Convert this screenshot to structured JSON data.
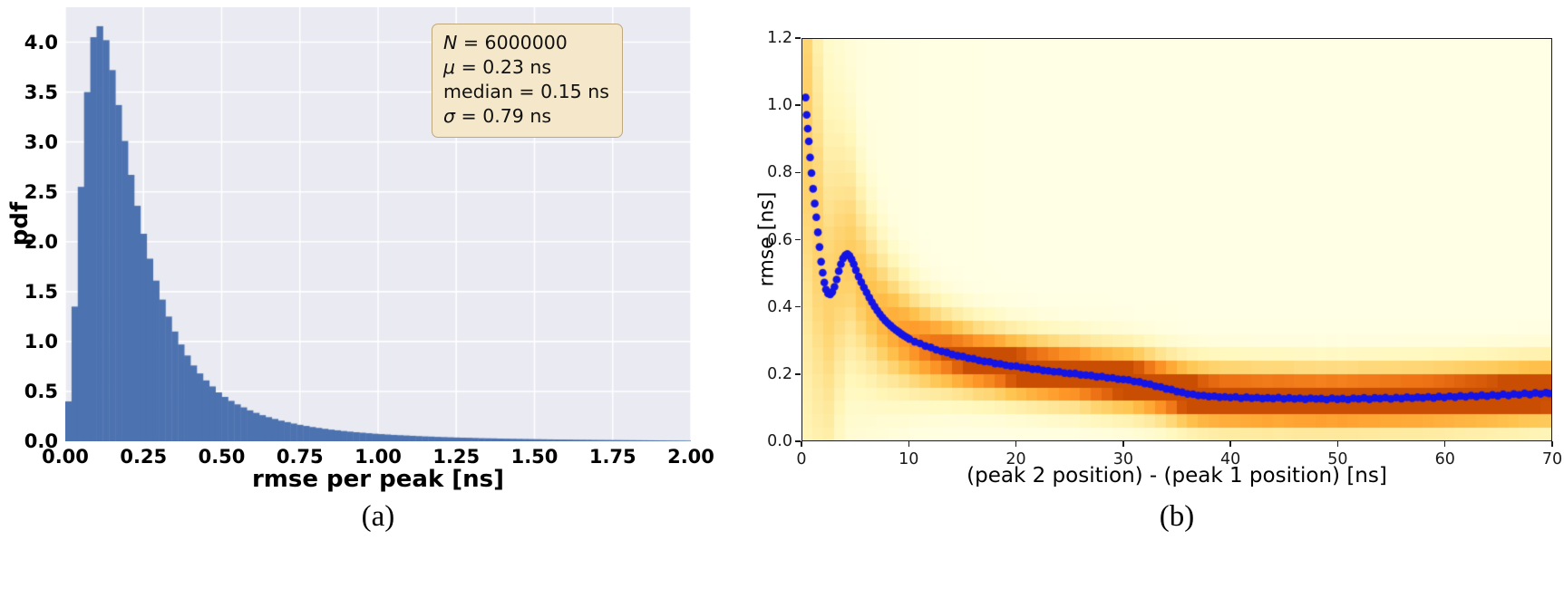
{
  "figure": {
    "caption_a": "(a)",
    "caption_b": "(b)"
  },
  "chart_data": [
    {
      "type": "bar",
      "title": "",
      "xlabel": "rmse per peak [ns]",
      "ylabel": "pdf",
      "xlim": [
        0,
        2
      ],
      "ylim": [
        0,
        4.35
      ],
      "grid": true,
      "bin_start": 0,
      "bin_width": 0.02,
      "bar_color": "#4c72b0",
      "axes_bg": "#e9eaf2",
      "grid_color": "#ffffff",
      "xtick_labels": [
        "0.00",
        "0.25",
        "0.50",
        "0.75",
        "1.00",
        "1.25",
        "1.50",
        "1.75",
        "2.00"
      ],
      "ytick_labels": [
        "0.0",
        "0.5",
        "1.0",
        "1.5",
        "2.0",
        "2.5",
        "3.0",
        "3.5",
        "4.0"
      ],
      "values": [
        0.4,
        1.35,
        2.55,
        3.5,
        4.05,
        4.16,
        4.02,
        3.72,
        3.37,
        3.01,
        2.67,
        2.36,
        2.08,
        1.83,
        1.61,
        1.42,
        1.25,
        1.1,
        0.97,
        0.86,
        0.76,
        0.68,
        0.61,
        0.55,
        0.49,
        0.445,
        0.405,
        0.37,
        0.34,
        0.31,
        0.285,
        0.262,
        0.242,
        0.224,
        0.207,
        0.192,
        0.178,
        0.165,
        0.154,
        0.143,
        0.134,
        0.125,
        0.117,
        0.11,
        0.103,
        0.097,
        0.091,
        0.086,
        0.081,
        0.076,
        0.072,
        0.068,
        0.064,
        0.061,
        0.058,
        0.055,
        0.052,
        0.049,
        0.047,
        0.044,
        0.042,
        0.04,
        0.038,
        0.036,
        0.035,
        0.033,
        0.031,
        0.03,
        0.029,
        0.027,
        0.026,
        0.025,
        0.024,
        0.023,
        0.022,
        0.021,
        0.02,
        0.019,
        0.018,
        0.0175,
        0.017,
        0.016,
        0.0155,
        0.015,
        0.014,
        0.0135,
        0.013,
        0.0125,
        0.012,
        0.0115,
        0.011,
        0.0105,
        0.01,
        0.0095,
        0.009,
        0.0085,
        0.008,
        0.0075,
        0.007,
        0.0065
      ],
      "annotation": {
        "lines": [
          {
            "name": "N",
            "italic": true,
            "value": "6000000"
          },
          {
            "name": "μ",
            "italic": true,
            "value": "0.23 ns"
          },
          {
            "name": "median",
            "italic": false,
            "value": "0.15 ns"
          },
          {
            "name": "σ",
            "italic": true,
            "value": "0.79 ns"
          }
        ]
      }
    },
    {
      "type": "scatter",
      "title": "",
      "xlabel": "(peak 2 position) - (peak 1 position) [ns]",
      "ylabel": "rmse [ns]",
      "xlim": [
        0,
        70
      ],
      "ylim": [
        0,
        1.2
      ],
      "grid": false,
      "marker_color": "#1414e6",
      "xtick_labels": [
        "0",
        "10",
        "20",
        "30",
        "40",
        "50",
        "60",
        "70"
      ],
      "ytick_labels": [
        "0.0",
        "0.2",
        "0.4",
        "0.6",
        "0.8",
        "1.0",
        "1.2"
      ],
      "points": [
        [
          0.3,
          1.025
        ],
        [
          0.4,
          0.973
        ],
        [
          0.5,
          0.932
        ],
        [
          0.6,
          0.894
        ],
        [
          0.72,
          0.846
        ],
        [
          0.85,
          0.799
        ],
        [
          1.0,
          0.752
        ],
        [
          1.15,
          0.708
        ],
        [
          1.3,
          0.667
        ],
        [
          1.45,
          0.622
        ],
        [
          1.6,
          0.578
        ],
        [
          1.75,
          0.534
        ],
        [
          1.9,
          0.501
        ],
        [
          2.05,
          0.472
        ],
        [
          2.2,
          0.451
        ],
        [
          2.4,
          0.439
        ],
        [
          2.6,
          0.436
        ],
        [
          2.8,
          0.444
        ],
        [
          3.0,
          0.459
        ],
        [
          3.2,
          0.481
        ],
        [
          3.4,
          0.506
        ],
        [
          3.6,
          0.527
        ],
        [
          3.8,
          0.544
        ],
        [
          4.0,
          0.553
        ],
        [
          4.2,
          0.557
        ],
        [
          4.4,
          0.552
        ],
        [
          4.6,
          0.541
        ],
        [
          4.8,
          0.527
        ],
        [
          5.0,
          0.509
        ],
        [
          5.25,
          0.49
        ],
        [
          5.5,
          0.473
        ],
        [
          5.75,
          0.457
        ],
        [
          6.0,
          0.442
        ],
        [
          6.25,
          0.427
        ],
        [
          6.5,
          0.413
        ],
        [
          6.75,
          0.4
        ],
        [
          7.0,
          0.388
        ],
        [
          7.25,
          0.377
        ],
        [
          7.5,
          0.367
        ],
        [
          7.75,
          0.358
        ],
        [
          8.0,
          0.35
        ],
        [
          8.25,
          0.343
        ],
        [
          8.5,
          0.336
        ],
        [
          8.75,
          0.33
        ],
        [
          9.0,
          0.324
        ],
        [
          9.25,
          0.318
        ],
        [
          9.5,
          0.313
        ],
        [
          9.75,
          0.308
        ],
        [
          10.0,
          0.303
        ],
        [
          10.5,
          0.295
        ],
        [
          11.0,
          0.29
        ],
        [
          11.5,
          0.282
        ],
        [
          12.0,
          0.278
        ],
        [
          12.5,
          0.271
        ],
        [
          13.0,
          0.266
        ],
        [
          13.5,
          0.263
        ],
        [
          14.0,
          0.257
        ],
        [
          14.5,
          0.253
        ],
        [
          15.0,
          0.251
        ],
        [
          15.5,
          0.246
        ],
        [
          16.0,
          0.244
        ],
        [
          16.5,
          0.239
        ],
        [
          17.0,
          0.236
        ],
        [
          17.5,
          0.235
        ],
        [
          18.0,
          0.23
        ],
        [
          18.5,
          0.229
        ],
        [
          19.0,
          0.225
        ],
        [
          19.5,
          0.222
        ],
        [
          20.0,
          0.222
        ],
        [
          20.5,
          0.218
        ],
        [
          21.0,
          0.217
        ],
        [
          21.5,
          0.213
        ],
        [
          22.0,
          0.213
        ],
        [
          22.5,
          0.209
        ],
        [
          23.0,
          0.208
        ],
        [
          23.5,
          0.205
        ],
        [
          24.0,
          0.205
        ],
        [
          24.5,
          0.201
        ],
        [
          25.0,
          0.2
        ],
        [
          25.5,
          0.2
        ],
        [
          26.0,
          0.196
        ],
        [
          26.5,
          0.195
        ],
        [
          27.0,
          0.194
        ],
        [
          27.5,
          0.19
        ],
        [
          28.0,
          0.191
        ],
        [
          28.5,
          0.187
        ],
        [
          29.0,
          0.187
        ],
        [
          29.5,
          0.183
        ],
        [
          30.0,
          0.182
        ],
        [
          30.5,
          0.181
        ],
        [
          31.0,
          0.176
        ],
        [
          31.5,
          0.175
        ],
        [
          32.0,
          0.17
        ],
        [
          32.5,
          0.168
        ],
        [
          33.0,
          0.162
        ],
        [
          33.5,
          0.16
        ],
        [
          34.0,
          0.154
        ],
        [
          34.5,
          0.152
        ],
        [
          35.0,
          0.146
        ],
        [
          35.5,
          0.144
        ],
        [
          36.0,
          0.139
        ],
        [
          36.5,
          0.138
        ],
        [
          37.0,
          0.134
        ],
        [
          37.5,
          0.134
        ],
        [
          38.0,
          0.131
        ],
        [
          38.5,
          0.132
        ],
        [
          39.0,
          0.129
        ],
        [
          39.5,
          0.13
        ],
        [
          40.0,
          0.128
        ],
        [
          40.5,
          0.13
        ],
        [
          41.0,
          0.126
        ],
        [
          41.5,
          0.129
        ],
        [
          42.0,
          0.126
        ],
        [
          42.5,
          0.128
        ],
        [
          43.0,
          0.125
        ],
        [
          43.5,
          0.127
        ],
        [
          44.0,
          0.125
        ],
        [
          44.5,
          0.128
        ],
        [
          45.0,
          0.124
        ],
        [
          45.5,
          0.127
        ],
        [
          46.0,
          0.124
        ],
        [
          46.5,
          0.126
        ],
        [
          47.0,
          0.123
        ],
        [
          47.5,
          0.126
        ],
        [
          48.0,
          0.124
        ],
        [
          48.5,
          0.125
        ],
        [
          49.0,
          0.122
        ],
        [
          49.5,
          0.126
        ],
        [
          50.0,
          0.123
        ],
        [
          50.5,
          0.125
        ],
        [
          51.0,
          0.122
        ],
        [
          51.5,
          0.126
        ],
        [
          52.0,
          0.124
        ],
        [
          52.5,
          0.127
        ],
        [
          53.0,
          0.123
        ],
        [
          53.5,
          0.127
        ],
        [
          54.0,
          0.125
        ],
        [
          54.5,
          0.128
        ],
        [
          55.0,
          0.124
        ],
        [
          55.5,
          0.128
        ],
        [
          56.0,
          0.125
        ],
        [
          56.5,
          0.129
        ],
        [
          57.0,
          0.126
        ],
        [
          57.5,
          0.129
        ],
        [
          58.0,
          0.127
        ],
        [
          58.5,
          0.13
        ],
        [
          59.0,
          0.127
        ],
        [
          59.5,
          0.131
        ],
        [
          60.0,
          0.128
        ],
        [
          60.5,
          0.132
        ],
        [
          61.0,
          0.129
        ],
        [
          61.5,
          0.133
        ],
        [
          62.0,
          0.13
        ],
        [
          62.5,
          0.134
        ],
        [
          63.0,
          0.131
        ],
        [
          63.5,
          0.135
        ],
        [
          64.0,
          0.132
        ],
        [
          64.5,
          0.136
        ],
        [
          65.0,
          0.133
        ],
        [
          65.5,
          0.138
        ],
        [
          66.0,
          0.134
        ],
        [
          66.5,
          0.139
        ],
        [
          67.0,
          0.136
        ],
        [
          67.5,
          0.141
        ],
        [
          68.0,
          0.137
        ],
        [
          68.5,
          0.142
        ],
        [
          69.0,
          0.139
        ],
        [
          69.5,
          0.143
        ],
        [
          69.8,
          0.14
        ]
      ],
      "heatmap": {
        "description": "2D density of rmse vs peak separation, dark band follows mean curve",
        "x_bins": 70,
        "y_bins": 30,
        "s_base": 0.065,
        "s_amp": 0.5,
        "s_tau": 4,
        "peak_scale": 0.08,
        "boost_amp": 1.6,
        "boost_tau": 3,
        "floor_amp": 0.16,
        "floor_tau": 4,
        "colormap_stops": [
          [
            0,
            "#ffffe5"
          ],
          [
            0.18,
            "#fff7bc"
          ],
          [
            0.38,
            "#fee391"
          ],
          [
            0.58,
            "#fec44f"
          ],
          [
            0.78,
            "#fe9929"
          ],
          [
            0.92,
            "#ec7014"
          ],
          [
            1,
            "#c94d02"
          ]
        ]
      }
    }
  ]
}
